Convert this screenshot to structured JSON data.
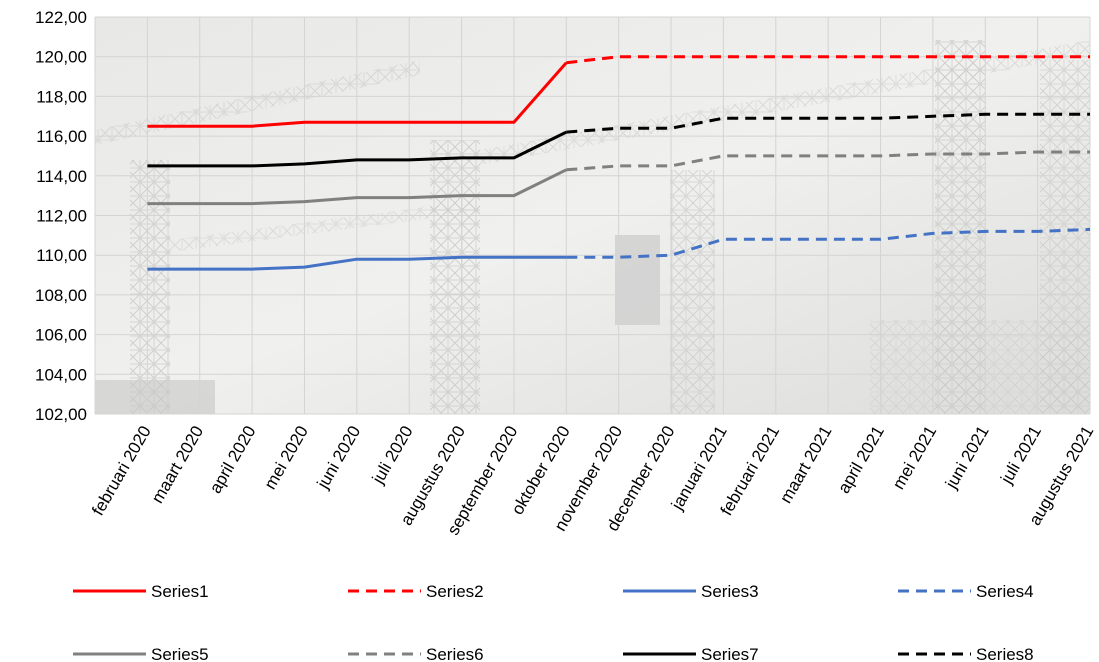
{
  "chart_data": {
    "type": "line",
    "categories": [
      "februari 2020",
      "maart 2020",
      "april 2020",
      "mei 2020",
      "juni 2020",
      "juli 2020",
      "augustus 2020",
      "september 2020",
      "oktober 2020",
      "november 2020",
      "december 2020",
      "januari 2021",
      "februari 2021",
      "maart 2021",
      "april 2021",
      "mei 2021",
      "juni 2021",
      "juli 2021",
      "augustus 2021"
    ],
    "ylim": [
      102,
      122
    ],
    "yticks": [
      "102,00",
      "104,00",
      "106,00",
      "108,00",
      "110,00",
      "112,00",
      "114,00",
      "116,00",
      "118,00",
      "120,00",
      "122,00"
    ],
    "grid": true,
    "legend_position": "bottom",
    "series": [
      {
        "name": "Series1",
        "color": "#ff0000",
        "dash": "solid",
        "values": [
          116.5,
          116.5,
          116.5,
          116.7,
          116.7,
          116.7,
          116.7,
          116.7,
          119.7,
          null,
          null,
          null,
          null,
          null,
          null,
          null,
          null,
          null,
          null
        ]
      },
      {
        "name": "Series2",
        "color": "#ff0000",
        "dash": "dashed",
        "values": [
          null,
          null,
          null,
          null,
          null,
          null,
          null,
          null,
          119.7,
          120.0,
          120.0,
          120.0,
          120.0,
          120.0,
          120.0,
          120.0,
          120.0,
          120.0,
          120.0
        ]
      },
      {
        "name": "Series3",
        "color": "#4472c4",
        "dash": "solid",
        "values": [
          109.3,
          109.3,
          109.3,
          109.4,
          109.8,
          109.8,
          109.9,
          109.9,
          109.9,
          null,
          null,
          null,
          null,
          null,
          null,
          null,
          null,
          null,
          null
        ]
      },
      {
        "name": "Series4",
        "color": "#4472c4",
        "dash": "dashed",
        "values": [
          null,
          null,
          null,
          null,
          null,
          null,
          null,
          null,
          109.9,
          109.9,
          110.0,
          110.8,
          110.8,
          110.8,
          110.8,
          111.1,
          111.2,
          111.2,
          111.3
        ]
      },
      {
        "name": "Series5",
        "color": "#808080",
        "dash": "solid",
        "values": [
          112.6,
          112.6,
          112.6,
          112.7,
          112.9,
          112.9,
          113.0,
          113.0,
          114.3,
          null,
          null,
          null,
          null,
          null,
          null,
          null,
          null,
          null,
          null
        ]
      },
      {
        "name": "Series6",
        "color": "#808080",
        "dash": "dashed",
        "values": [
          null,
          null,
          null,
          null,
          null,
          null,
          null,
          null,
          114.3,
          114.5,
          114.5,
          115.0,
          115.0,
          115.0,
          115.0,
          115.1,
          115.1,
          115.2,
          115.2
        ]
      },
      {
        "name": "Series7",
        "color": "#000000",
        "dash": "solid",
        "values": [
          114.5,
          114.5,
          114.5,
          114.6,
          114.8,
          114.8,
          114.9,
          114.9,
          116.2,
          null,
          null,
          null,
          null,
          null,
          null,
          null,
          null,
          null,
          null
        ]
      },
      {
        "name": "Series8",
        "color": "#000000",
        "dash": "dashed",
        "values": [
          null,
          null,
          null,
          null,
          null,
          null,
          null,
          null,
          116.2,
          116.4,
          116.4,
          116.9,
          116.9,
          116.9,
          116.9,
          117.0,
          117.1,
          117.1,
          117.1
        ]
      }
    ]
  }
}
